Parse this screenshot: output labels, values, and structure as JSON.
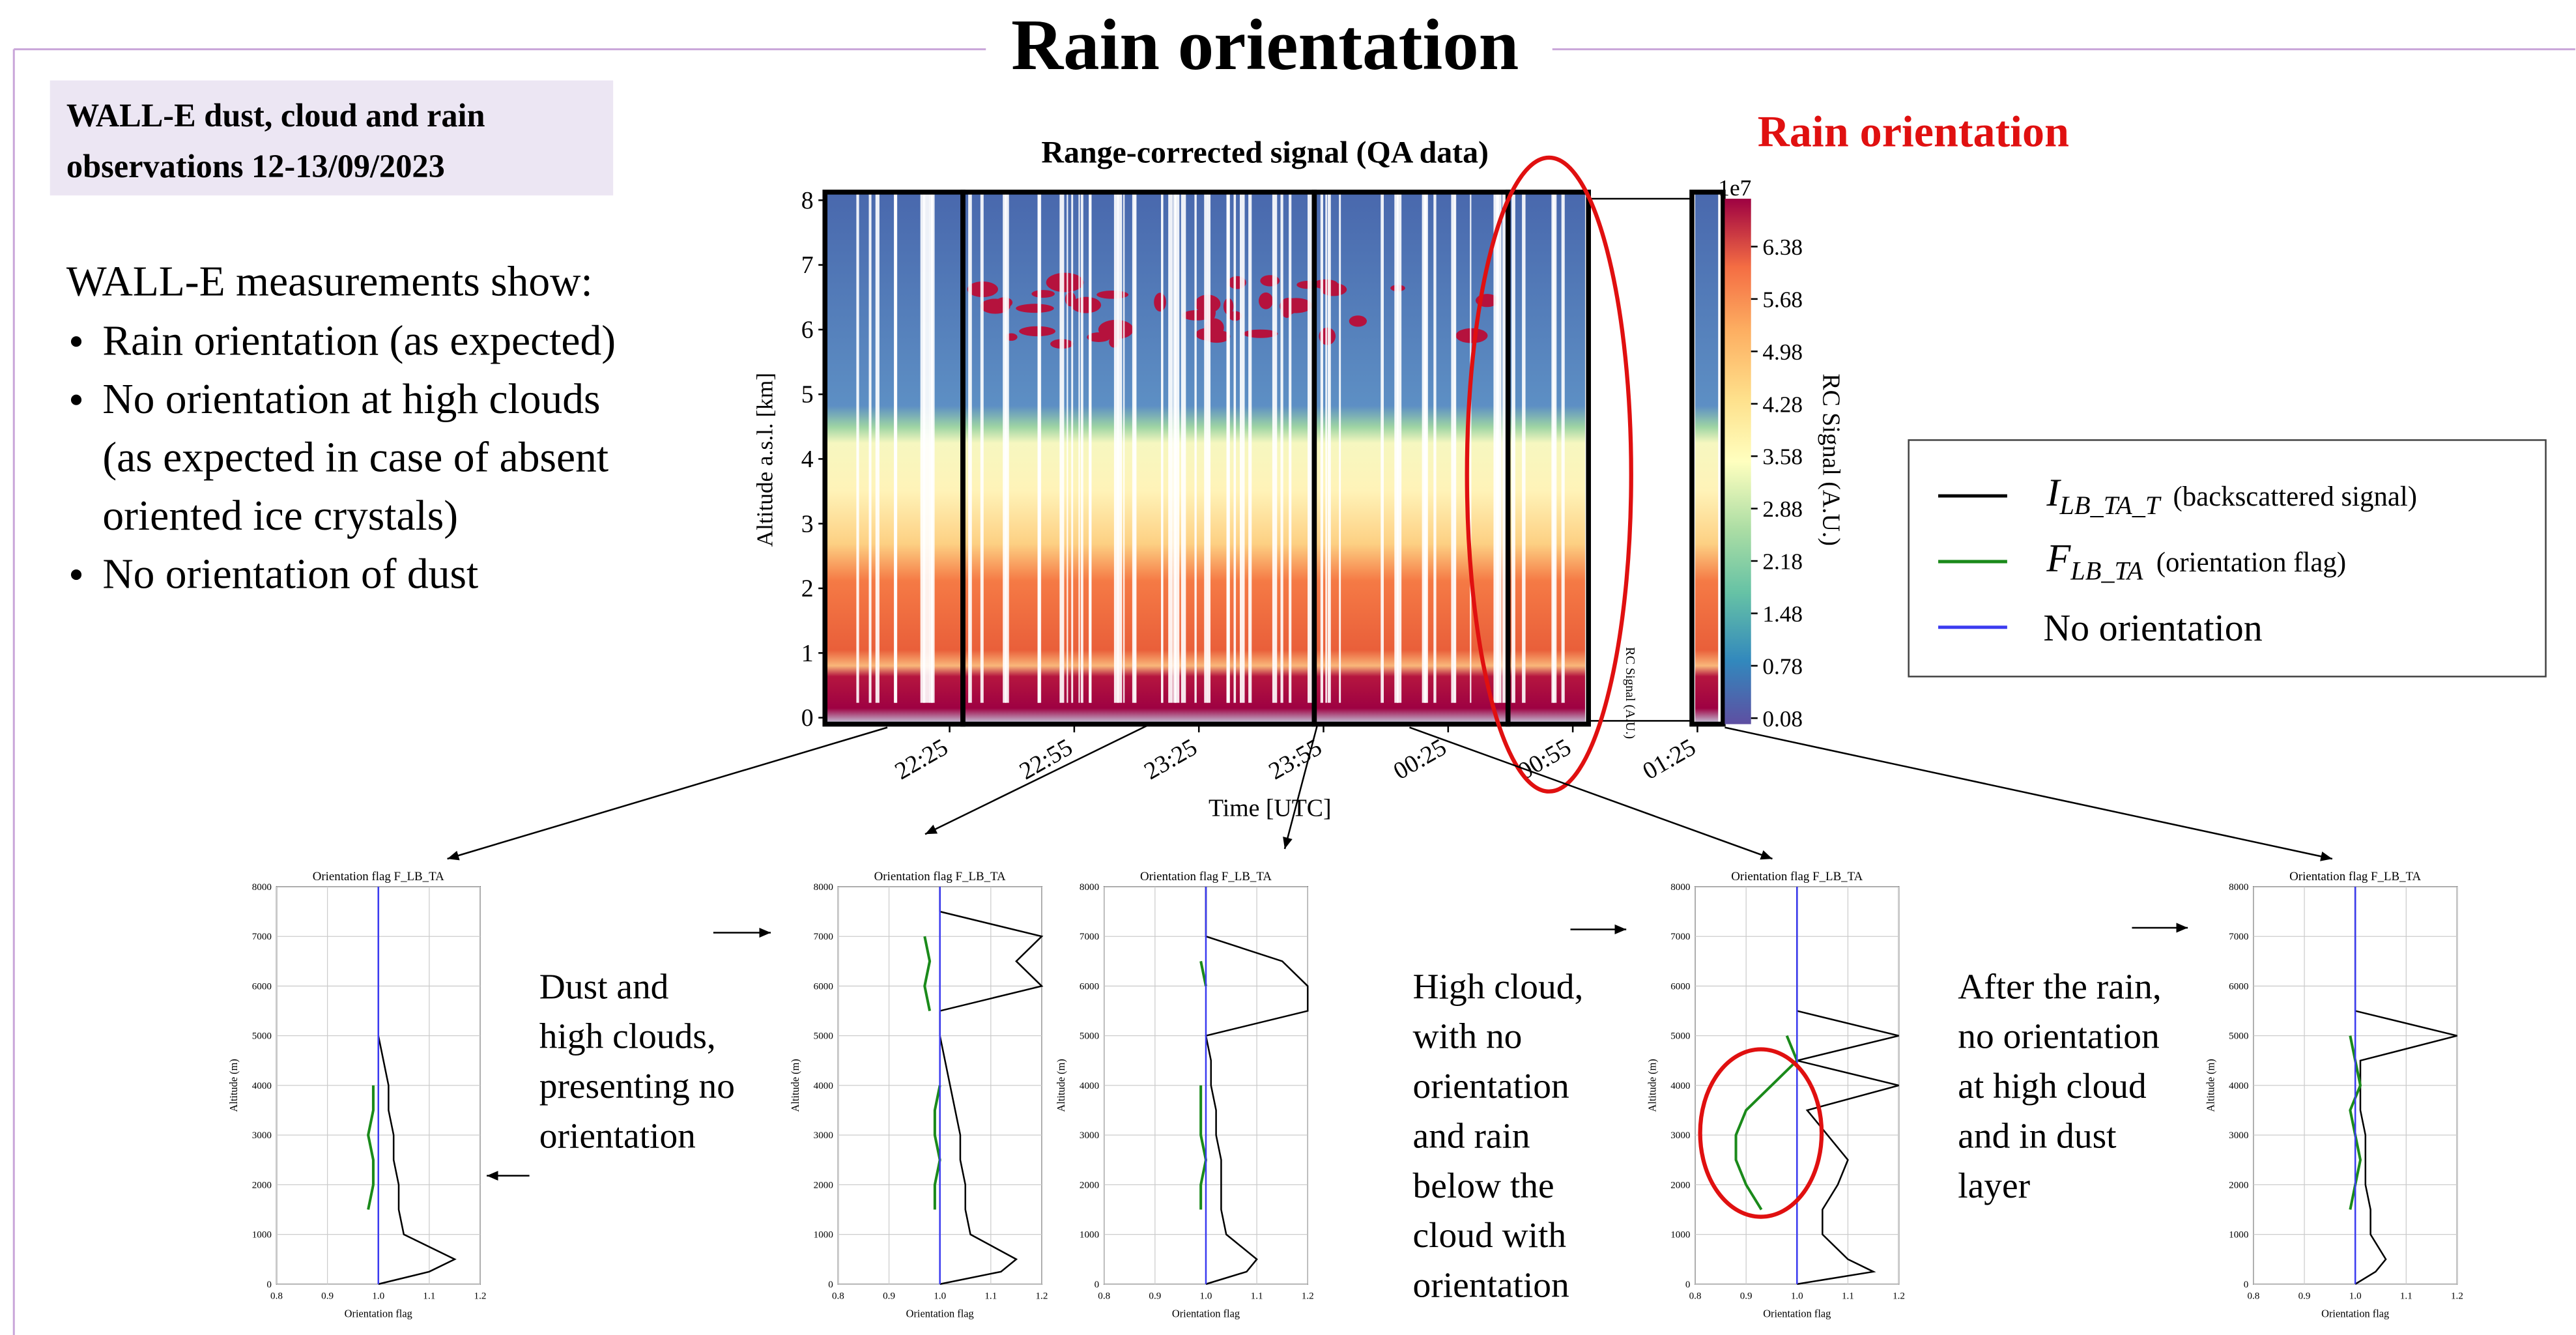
{
  "header": {
    "title": "Rain orientation"
  },
  "box": {
    "lines": [
      "WALL-E dust, cloud and rain",
      "observations 12-13/09/2023"
    ]
  },
  "text": {
    "intro": "WALL-E measurements show:",
    "bullets": [
      [
        "Rain orientation (as expected)"
      ],
      [
        "No orientation at high clouds",
        "(as expected in case of absent",
        "oriented ice crystals)"
      ],
      [
        "No orientation of dust"
      ]
    ]
  },
  "annotation": "Rain orientation",
  "legend": {
    "entries": [
      {
        "symbol": "I",
        "sub": "LB_TA_T",
        "note": "(backscattered signal)",
        "color": "#000000"
      },
      {
        "symbol": "F",
        "sub": "LB_TA",
        "note": "(orientation flag)",
        "color": "#1a8a1a"
      },
      {
        "label": "No orientation",
        "color": "#3b3bf0"
      }
    ]
  },
  "notes": [
    [
      "Dust and",
      "high clouds,",
      "presenting no",
      "orientation"
    ],
    [
      "High cloud,",
      "with no",
      "orientation",
      "and rain",
      "below the",
      "cloud with",
      "orientation"
    ],
    [
      "After the rain,",
      "no orientation",
      "at high cloud",
      "and in dust",
      "layer"
    ]
  ],
  "chart_data": [
    {
      "type": "heatmap",
      "title": "Range-corrected signal (QA data)",
      "xlabel": "Time [UTC]",
      "ylabel": "Altitude a.s.l. [km]",
      "xlim": [
        -5,
        210
      ],
      "xticks": [
        {
          "value": 25,
          "label": "22:25"
        },
        {
          "value": 55,
          "label": "22:55"
        },
        {
          "value": 85,
          "label": "23:25"
        },
        {
          "value": 115,
          "label": "23:55"
        },
        {
          "value": 145,
          "label": "00:25"
        },
        {
          "value": 175,
          "label": "00:55"
        },
        {
          "value": 205,
          "label": "01:25"
        }
      ],
      "ylim": [
        -0.1,
        8.1
      ],
      "yticks": [
        0,
        1,
        2,
        3,
        4,
        5,
        6,
        7,
        8
      ],
      "colorbar": {
        "label": "RC Signal (A.U.)",
        "multiplier": "1e7",
        "clim": [
          0,
          7.02
        ],
        "ticks": [
          0.08,
          0.78,
          1.48,
          2.18,
          2.88,
          3.58,
          4.28,
          4.98,
          5.68,
          6.38
        ]
      }
    },
    {
      "type": "line",
      "title": "Orientation flag F_LB_TA",
      "xlabel": "Orientation flag",
      "ylabel": "Altitude (m)",
      "xlim": [
        0.8,
        1.2
      ],
      "xticks": [
        0.8,
        0.9,
        {
          "value": 1,
          "label": "1.0"
        },
        1.1,
        1.2
      ],
      "ylim": [
        0,
        8000
      ],
      "yticks": [
        0,
        1000,
        2000,
        3000,
        4000,
        5000,
        6000,
        7000,
        8000
      ],
      "grid": true,
      "y": [
        0,
        250,
        500,
        1000,
        1500,
        2000,
        2500,
        3000,
        3500,
        4000,
        4500,
        5000,
        5500,
        6000,
        6500,
        7000,
        7500,
        8000
      ],
      "series": [
        {
          "color": "#000000",
          "values": [
            1.0,
            1.1,
            1.15,
            1.05,
            1.04,
            1.04,
            1.03,
            1.03,
            1.02,
            1.02,
            1.01,
            1.0,
            1.0,
            1.0,
            1.0,
            1.0,
            1.0,
            1.0
          ]
        },
        {
          "color": "#1a8a1a",
          "values": [
            null,
            null,
            null,
            null,
            0.98,
            0.99,
            0.99,
            0.98,
            0.99,
            0.99,
            null,
            null,
            null,
            null,
            null,
            null,
            null,
            null
          ]
        },
        {
          "color": "#3b3bf0",
          "values": [
            1,
            1,
            1,
            1,
            1,
            1,
            1,
            1,
            1,
            1,
            1,
            1,
            1,
            1,
            1,
            1,
            1,
            1
          ]
        }
      ]
    },
    {
      "type": "line",
      "title": "Orientation flag F_LB_TA",
      "xlabel": "Orientation flag",
      "ylabel": "Altitude (m)",
      "xlim": [
        0.8,
        1.2
      ],
      "xticks": [
        0.8,
        0.9,
        {
          "value": 1,
          "label": "1.0"
        },
        1.1,
        1.2
      ],
      "ylim": [
        0,
        8000
      ],
      "yticks": [
        0,
        1000,
        2000,
        3000,
        4000,
        5000,
        6000,
        7000,
        8000
      ],
      "grid": true,
      "y": [
        0,
        250,
        500,
        1000,
        1500,
        2000,
        2500,
        3000,
        3500,
        4000,
        4500,
        5000,
        5500,
        6000,
        6500,
        7000,
        7500,
        8000
      ],
      "series": [
        {
          "color": "#000000",
          "values": [
            1.0,
            1.12,
            1.15,
            1.06,
            1.05,
            1.05,
            1.04,
            1.04,
            1.03,
            1.02,
            1.01,
            1.0,
            1.0,
            1.2,
            1.15,
            1.2,
            1.0,
            1.0
          ]
        },
        {
          "color": "#1a8a1a",
          "values": [
            null,
            null,
            null,
            null,
            0.99,
            0.99,
            1.0,
            0.99,
            0.99,
            1.0,
            null,
            null,
            0.98,
            0.97,
            0.98,
            0.97,
            null,
            null
          ]
        },
        {
          "color": "#3b3bf0",
          "values": [
            1,
            1,
            1,
            1,
            1,
            1,
            1,
            1,
            1,
            1,
            1,
            1,
            1,
            1,
            1,
            1,
            1,
            1
          ]
        }
      ]
    },
    {
      "type": "line",
      "title": "Orientation flag F_LB_TA",
      "xlabel": "Orientation flag",
      "ylabel": "Altitude (m)",
      "xlim": [
        0.8,
        1.2
      ],
      "xticks": [
        0.8,
        0.9,
        {
          "value": 1,
          "label": "1.0"
        },
        1.1,
        1.2
      ],
      "ylim": [
        0,
        8000
      ],
      "yticks": [
        0,
        1000,
        2000,
        3000,
        4000,
        5000,
        6000,
        7000,
        8000
      ],
      "grid": true,
      "y": [
        0,
        250,
        500,
        1000,
        1500,
        2000,
        2500,
        3000,
        3500,
        4000,
        4500,
        5000,
        5500,
        6000,
        6500,
        7000,
        7500,
        8000
      ],
      "series": [
        {
          "color": "#000000",
          "values": [
            1.0,
            1.08,
            1.1,
            1.04,
            1.03,
            1.03,
            1.03,
            1.02,
            1.02,
            1.01,
            1.01,
            1.0,
            1.2,
            1.2,
            1.15,
            1.0,
            1.0,
            1.0
          ]
        },
        {
          "color": "#1a8a1a",
          "values": [
            null,
            null,
            null,
            null,
            0.99,
            0.99,
            1.0,
            0.99,
            0.99,
            0.99,
            null,
            null,
            null,
            1.0,
            0.99,
            null,
            null,
            null
          ]
        },
        {
          "color": "#3b3bf0",
          "values": [
            1,
            1,
            1,
            1,
            1,
            1,
            1,
            1,
            1,
            1,
            1,
            1,
            1,
            1,
            1,
            1,
            1,
            1
          ]
        }
      ]
    },
    {
      "type": "line",
      "title": "Orientation flag F_LB_TA",
      "xlabel": "Orientation flag",
      "ylabel": "Altitude (m)",
      "xlim": [
        0.8,
        1.2
      ],
      "xticks": [
        0.8,
        0.9,
        {
          "value": 1,
          "label": "1.0"
        },
        1.1,
        1.2
      ],
      "ylim": [
        0,
        8000
      ],
      "yticks": [
        0,
        1000,
        2000,
        3000,
        4000,
        5000,
        6000,
        7000,
        8000
      ],
      "grid": true,
      "y": [
        0,
        250,
        500,
        1000,
        1500,
        2000,
        2500,
        3000,
        3500,
        4000,
        4500,
        5000,
        5500,
        6000,
        6500,
        7000,
        7500,
        8000
      ],
      "series": [
        {
          "color": "#000000",
          "values": [
            1.0,
            1.15,
            1.1,
            1.05,
            1.05,
            1.08,
            1.1,
            1.06,
            1.02,
            1.2,
            1.0,
            1.2,
            1.0,
            1.0,
            1.0,
            1.0,
            1.0,
            1.0
          ]
        },
        {
          "color": "#1a8a1a",
          "values": [
            null,
            null,
            null,
            null,
            0.93,
            0.9,
            0.88,
            0.88,
            0.9,
            0.95,
            1.0,
            0.98,
            null,
            null,
            null,
            null,
            null,
            null
          ]
        },
        {
          "color": "#3b3bf0",
          "values": [
            1,
            1,
            1,
            1,
            1,
            1,
            1,
            1,
            1,
            1,
            1,
            1,
            1,
            1,
            1,
            1,
            1,
            1
          ]
        }
      ]
    },
    {
      "type": "line",
      "title": "Orientation flag F_LB_TA",
      "xlabel": "Orientation flag",
      "ylabel": "Altitude (m)",
      "xlim": [
        0.8,
        1.2
      ],
      "xticks": [
        0.8,
        0.9,
        {
          "value": 1,
          "label": "1.0"
        },
        1.1,
        1.2
      ],
      "ylim": [
        0,
        8000
      ],
      "yticks": [
        0,
        1000,
        2000,
        3000,
        4000,
        5000,
        6000,
        7000,
        8000
      ],
      "grid": true,
      "y": [
        0,
        250,
        500,
        1000,
        1500,
        2000,
        2500,
        3000,
        3500,
        4000,
        4500,
        5000,
        5500,
        6000,
        6500,
        7000,
        7500,
        8000
      ],
      "series": [
        {
          "color": "#000000",
          "values": [
            1.0,
            1.04,
            1.06,
            1.03,
            1.03,
            1.02,
            1.02,
            1.02,
            1.01,
            1.01,
            1.01,
            1.2,
            1.0,
            1.0,
            1.0,
            1.0,
            1.0,
            1.0
          ]
        },
        {
          "color": "#1a8a1a",
          "values": [
            null,
            null,
            null,
            null,
            0.99,
            1.0,
            1.01,
            1.0,
            0.99,
            1.01,
            1.0,
            0.99,
            null,
            null,
            null,
            null,
            null,
            null
          ]
        },
        {
          "color": "#3b3bf0",
          "values": [
            1,
            1,
            1,
            1,
            1,
            1,
            1,
            1,
            1,
            1,
            1,
            1,
            1,
            1,
            1,
            1,
            1,
            1
          ]
        }
      ]
    }
  ]
}
